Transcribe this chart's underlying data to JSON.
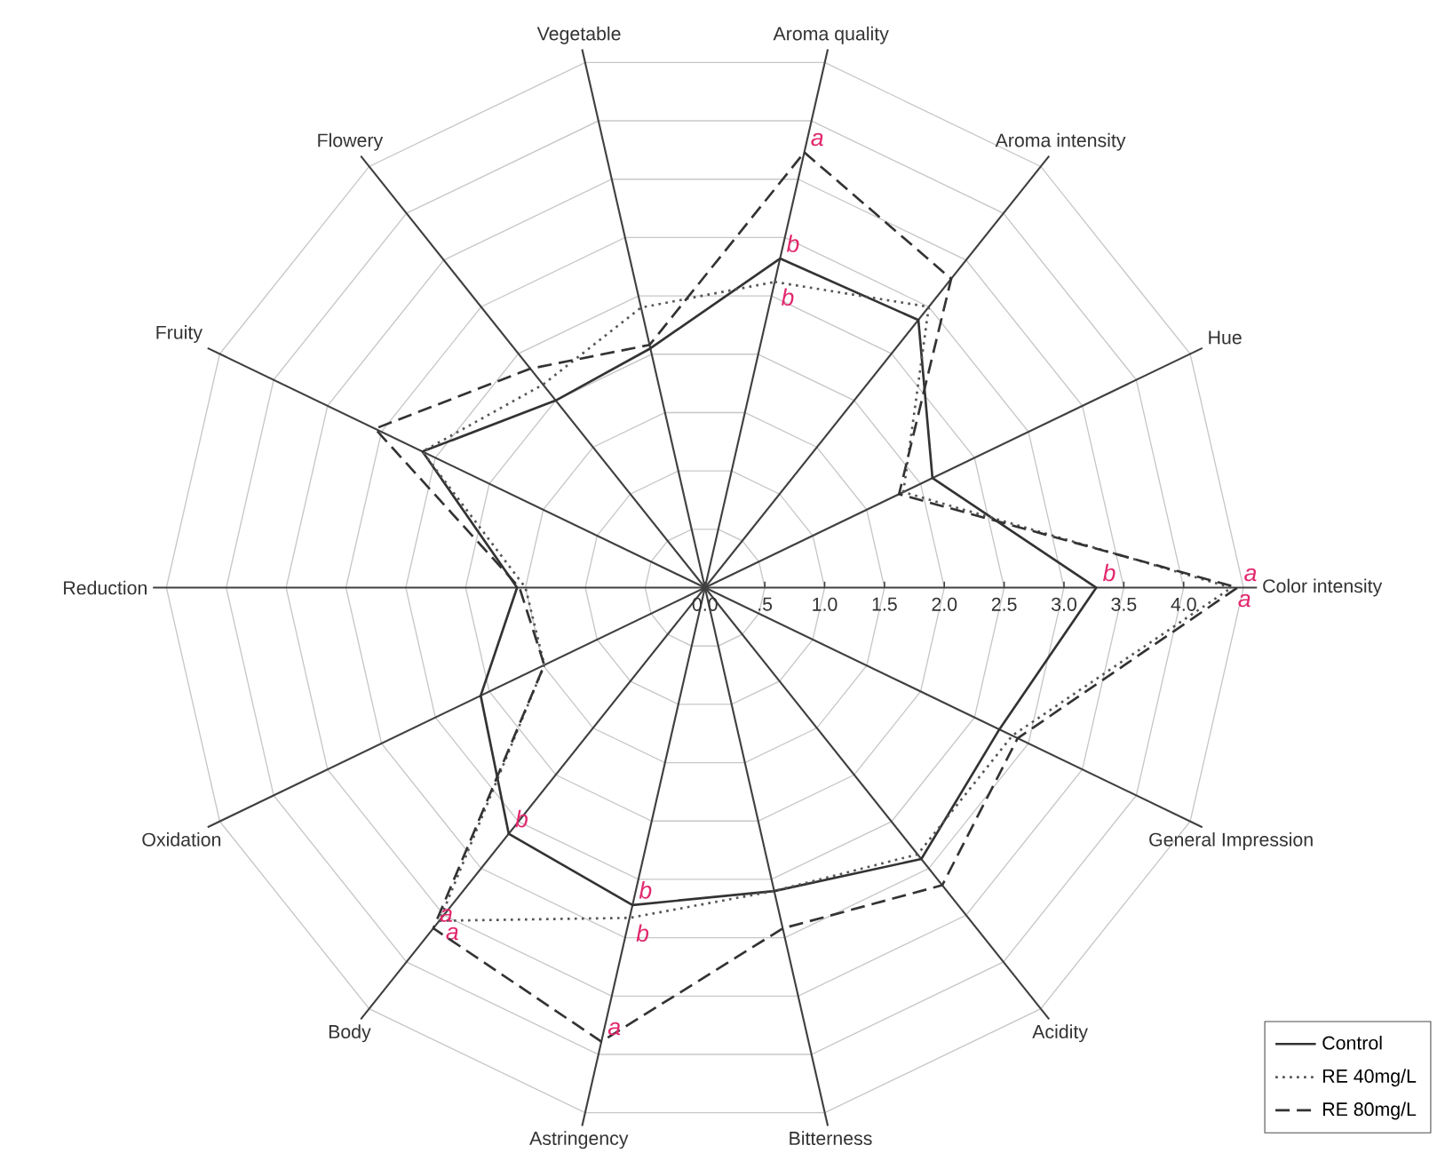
{
  "chart_data": {
    "type": "radar",
    "categories": [
      "Aroma quality",
      "Aroma intensity",
      "Hue",
      "Color intensity",
      "General Impression",
      "Acidity",
      "Bitterness",
      "Astringency",
      "Body",
      "Oxidation",
      "Reduction",
      "Fruity",
      "Flowery",
      "Vegetable"
    ],
    "series": [
      {
        "name": "Control",
        "color": "#333333",
        "line_style": "solid",
        "values": [
          2.82,
          2.86,
          2.11,
          3.27,
          2.73,
          2.9,
          2.6,
          2.72,
          2.63,
          2.08,
          1.57,
          2.62,
          2.0,
          2.05
        ],
        "value_labels": [
          "b",
          null,
          null,
          "b",
          null,
          null,
          null,
          "b",
          "b",
          null,
          null,
          null,
          null,
          null
        ]
      },
      {
        "name": "RE 40mg/L",
        "color": "#555555",
        "line_style": "dotted",
        "values": [
          2.62,
          3.0,
          1.84,
          4.4,
          2.85,
          2.85,
          2.6,
          2.83,
          3.56,
          1.49,
          1.5,
          2.62,
          2.17,
          2.4
        ],
        "value_labels": [
          "b",
          null,
          null,
          "a",
          null,
          null,
          null,
          "b",
          "a",
          null,
          null,
          null,
          null,
          null
        ]
      },
      {
        "name": "RE 80mg/L",
        "color": "#333333",
        "line_style": "dashed",
        "values": [
          3.73,
          3.3,
          1.8,
          4.45,
          2.9,
          3.18,
          2.92,
          3.89,
          3.64,
          1.49,
          1.55,
          3.06,
          2.34,
          2.08
        ],
        "value_labels": [
          "a",
          null,
          null,
          "a",
          null,
          null,
          null,
          "a",
          "a",
          null,
          null,
          null,
          null,
          null
        ]
      }
    ],
    "ylim": [
      0,
      4.5
    ],
    "yticks": [
      {
        "value": 0,
        "label": "0.0"
      },
      {
        "value": 0.5,
        "label": ".5"
      },
      {
        "value": 1,
        "label": "1.0"
      },
      {
        "value": 1.5,
        "label": "1.5"
      },
      {
        "value": 2,
        "label": "2.0"
      },
      {
        "value": 2.5,
        "label": "2.5"
      },
      {
        "value": 3,
        "label": "3.0"
      },
      {
        "value": 3.5,
        "label": "3.5"
      },
      {
        "value": 4,
        "label": "4.0"
      }
    ],
    "grid": true,
    "legend": "bottom right",
    "marker": "none"
  }
}
